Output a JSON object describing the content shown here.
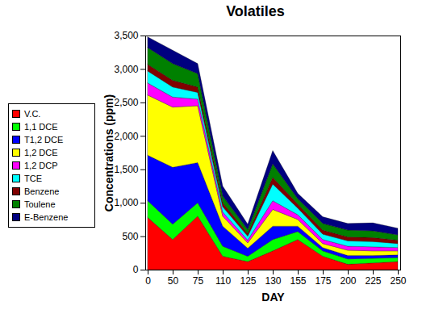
{
  "chart_data": {
    "type": "area",
    "title": "Volatiles",
    "stacked": true,
    "x_label": "DAY",
    "y_label": "Concentrations (ppm)",
    "categories": [
      0,
      50,
      75,
      110,
      125,
      130,
      155,
      175,
      200,
      225,
      250
    ],
    "ylim": [
      0,
      3500
    ],
    "yticks": [
      0,
      500,
      1000,
      1500,
      2000,
      2500,
      3000,
      3500
    ],
    "grid": false,
    "legend": "left",
    "series": [
      {
        "name": "V.C.",
        "color": "#ff0000",
        "values": [
          780,
          450,
          800,
          200,
          120,
          280,
          450,
          200,
          80,
          100,
          120
        ]
      },
      {
        "name": "1,1 DCE",
        "color": "#00ff00",
        "values": [
          250,
          230,
          200,
          150,
          80,
          170,
          120,
          80,
          80,
          70,
          60
        ]
      },
      {
        "name": "T1,2 DCE",
        "color": "#0000ff",
        "values": [
          680,
          850,
          600,
          300,
          120,
          200,
          80,
          50,
          50,
          40,
          40
        ]
      },
      {
        "name": "1,2 DCE",
        "color": "#ffff00",
        "values": [
          900,
          900,
          850,
          150,
          80,
          250,
          100,
          60,
          80,
          70,
          60
        ]
      },
      {
        "name": "1,2 DCP",
        "color": "#ff00ff",
        "values": [
          180,
          150,
          100,
          60,
          40,
          130,
          70,
          60,
          60,
          60,
          50
        ]
      },
      {
        "name": "TCE",
        "color": "#00ffff",
        "values": [
          180,
          150,
          100,
          80,
          60,
          250,
          100,
          80,
          80,
          80,
          60
        ]
      },
      {
        "name": "Benzene",
        "color": "#800000",
        "values": [
          100,
          100,
          80,
          60,
          40,
          100,
          60,
          60,
          60,
          60,
          50
        ]
      },
      {
        "name": "Toulene",
        "color": "#008000",
        "values": [
          250,
          250,
          200,
          100,
          60,
          200,
          80,
          100,
          100,
          100,
          80
        ]
      },
      {
        "name": "E-Benzene",
        "color": "#000080",
        "values": [
          160,
          200,
          150,
          150,
          80,
          200,
          80,
          100,
          100,
          120,
          100
        ]
      }
    ]
  }
}
